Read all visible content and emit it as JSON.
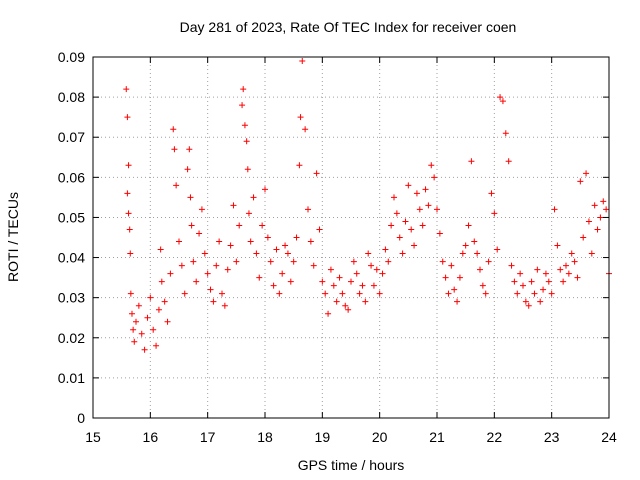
{
  "chart_data": {
    "type": "scatter",
    "title": "Day 281 of 2023, Rate Of TEC Index for receiver coen",
    "xlabel": "GPS time / hours",
    "ylabel": "ROTI / TECUs",
    "xlim": [
      15,
      24
    ],
    "ylim": [
      0,
      0.09
    ],
    "xticks": [
      "15",
      "16",
      "17",
      "18",
      "19",
      "20",
      "21",
      "22",
      "23",
      "24"
    ],
    "yticks": [
      "0",
      "0.01",
      "0.02",
      "0.03",
      "0.04",
      "0.05",
      "0.06",
      "0.07",
      "0.08",
      "0.09"
    ],
    "grid": true,
    "marker": "plus",
    "color": "#ff0000",
    "series": [
      {
        "x": [
          15.58,
          15.6,
          15.62,
          15.6,
          15.62,
          15.64,
          15.65,
          15.66,
          15.68,
          15.7,
          15.72,
          15.75,
          15.8,
          15.85,
          15.9,
          15.95,
          16.0,
          16.05,
          16.1,
          16.15,
          16.18,
          16.2,
          16.25,
          16.3,
          16.35,
          16.4,
          16.42,
          16.45,
          16.5,
          16.55,
          16.6,
          16.65,
          16.68,
          16.7,
          16.72,
          16.75,
          16.8,
          16.85,
          16.9,
          16.95,
          17.0,
          17.05,
          17.1,
          17.15,
          17.2,
          17.25,
          17.3,
          17.35,
          17.4,
          17.45,
          17.5,
          17.55,
          17.6,
          17.62,
          17.65,
          17.68,
          17.7,
          17.72,
          17.75,
          17.8,
          17.85,
          17.9,
          17.95,
          18.0,
          18.05,
          18.1,
          18.15,
          18.2,
          18.25,
          18.3,
          18.35,
          18.4,
          18.45,
          18.5,
          18.55,
          18.6,
          18.62,
          18.65,
          18.7,
          18.75,
          18.8,
          18.85,
          18.9,
          18.95,
          19.0,
          19.05,
          19.1,
          19.15,
          19.2,
          19.25,
          19.3,
          19.35,
          19.4,
          19.45,
          19.5,
          19.55,
          19.6,
          19.65,
          19.7,
          19.75,
          19.8,
          19.85,
          19.9,
          19.95,
          20.0,
          20.05,
          20.1,
          20.15,
          20.2,
          20.25,
          20.3,
          20.35,
          20.4,
          20.45,
          20.5,
          20.55,
          20.6,
          20.65,
          20.7,
          20.75,
          20.8,
          20.85,
          20.9,
          20.95,
          21.0,
          21.05,
          21.1,
          21.15,
          21.2,
          21.25,
          21.3,
          21.35,
          21.4,
          21.45,
          21.5,
          21.55,
          21.6,
          21.65,
          21.7,
          21.75,
          21.8,
          21.85,
          21.9,
          21.95,
          22.0,
          22.05,
          22.1,
          22.15,
          22.2,
          22.25,
          22.3,
          22.35,
          22.4,
          22.45,
          22.5,
          22.55,
          22.6,
          22.65,
          22.7,
          22.75,
          22.8,
          22.85,
          22.9,
          22.95,
          23.0,
          23.05,
          23.1,
          23.15,
          23.2,
          23.25,
          23.3,
          23.35,
          23.4,
          23.45,
          23.5,
          23.55,
          23.6,
          23.65,
          23.7,
          23.75,
          23.8,
          23.85,
          23.9,
          23.95,
          24.0
        ],
        "y": [
          0.082,
          0.075,
          0.063,
          0.056,
          0.051,
          0.047,
          0.041,
          0.031,
          0.026,
          0.022,
          0.019,
          0.024,
          0.028,
          0.021,
          0.017,
          0.025,
          0.03,
          0.022,
          0.018,
          0.027,
          0.042,
          0.034,
          0.029,
          0.024,
          0.036,
          0.072,
          0.067,
          0.058,
          0.044,
          0.038,
          0.031,
          0.062,
          0.067,
          0.055,
          0.048,
          0.039,
          0.034,
          0.046,
          0.052,
          0.041,
          0.036,
          0.032,
          0.029,
          0.038,
          0.044,
          0.031,
          0.028,
          0.037,
          0.043,
          0.053,
          0.039,
          0.048,
          0.078,
          0.082,
          0.073,
          0.069,
          0.062,
          0.051,
          0.044,
          0.055,
          0.041,
          0.035,
          0.048,
          0.057,
          0.045,
          0.039,
          0.033,
          0.042,
          0.031,
          0.036,
          0.043,
          0.041,
          0.034,
          0.039,
          0.045,
          0.063,
          0.075,
          0.089,
          0.072,
          0.052,
          0.044,
          0.038,
          0.061,
          0.047,
          0.034,
          0.031,
          0.026,
          0.037,
          0.033,
          0.029,
          0.035,
          0.031,
          0.028,
          0.027,
          0.034,
          0.039,
          0.036,
          0.031,
          0.033,
          0.029,
          0.041,
          0.038,
          0.033,
          0.037,
          0.031,
          0.036,
          0.042,
          0.039,
          0.048,
          0.055,
          0.051,
          0.045,
          0.041,
          0.049,
          0.058,
          0.047,
          0.043,
          0.056,
          0.052,
          0.048,
          0.057,
          0.053,
          0.063,
          0.06,
          0.052,
          0.046,
          0.039,
          0.035,
          0.031,
          0.038,
          0.032,
          0.029,
          0.035,
          0.041,
          0.043,
          0.048,
          0.064,
          0.044,
          0.041,
          0.037,
          0.033,
          0.031,
          0.039,
          0.056,
          0.051,
          0.042,
          0.08,
          0.079,
          0.071,
          0.064,
          0.038,
          0.034,
          0.031,
          0.036,
          0.033,
          0.029,
          0.028,
          0.034,
          0.031,
          0.037,
          0.029,
          0.032,
          0.036,
          0.034,
          0.031,
          0.052,
          0.043,
          0.037,
          0.034,
          0.038,
          0.036,
          0.041,
          0.039,
          0.035,
          0.059,
          0.045,
          0.061,
          0.049,
          0.041,
          0.053,
          0.047,
          0.05,
          0.054,
          0.052,
          0.036
        ]
      }
    ]
  }
}
